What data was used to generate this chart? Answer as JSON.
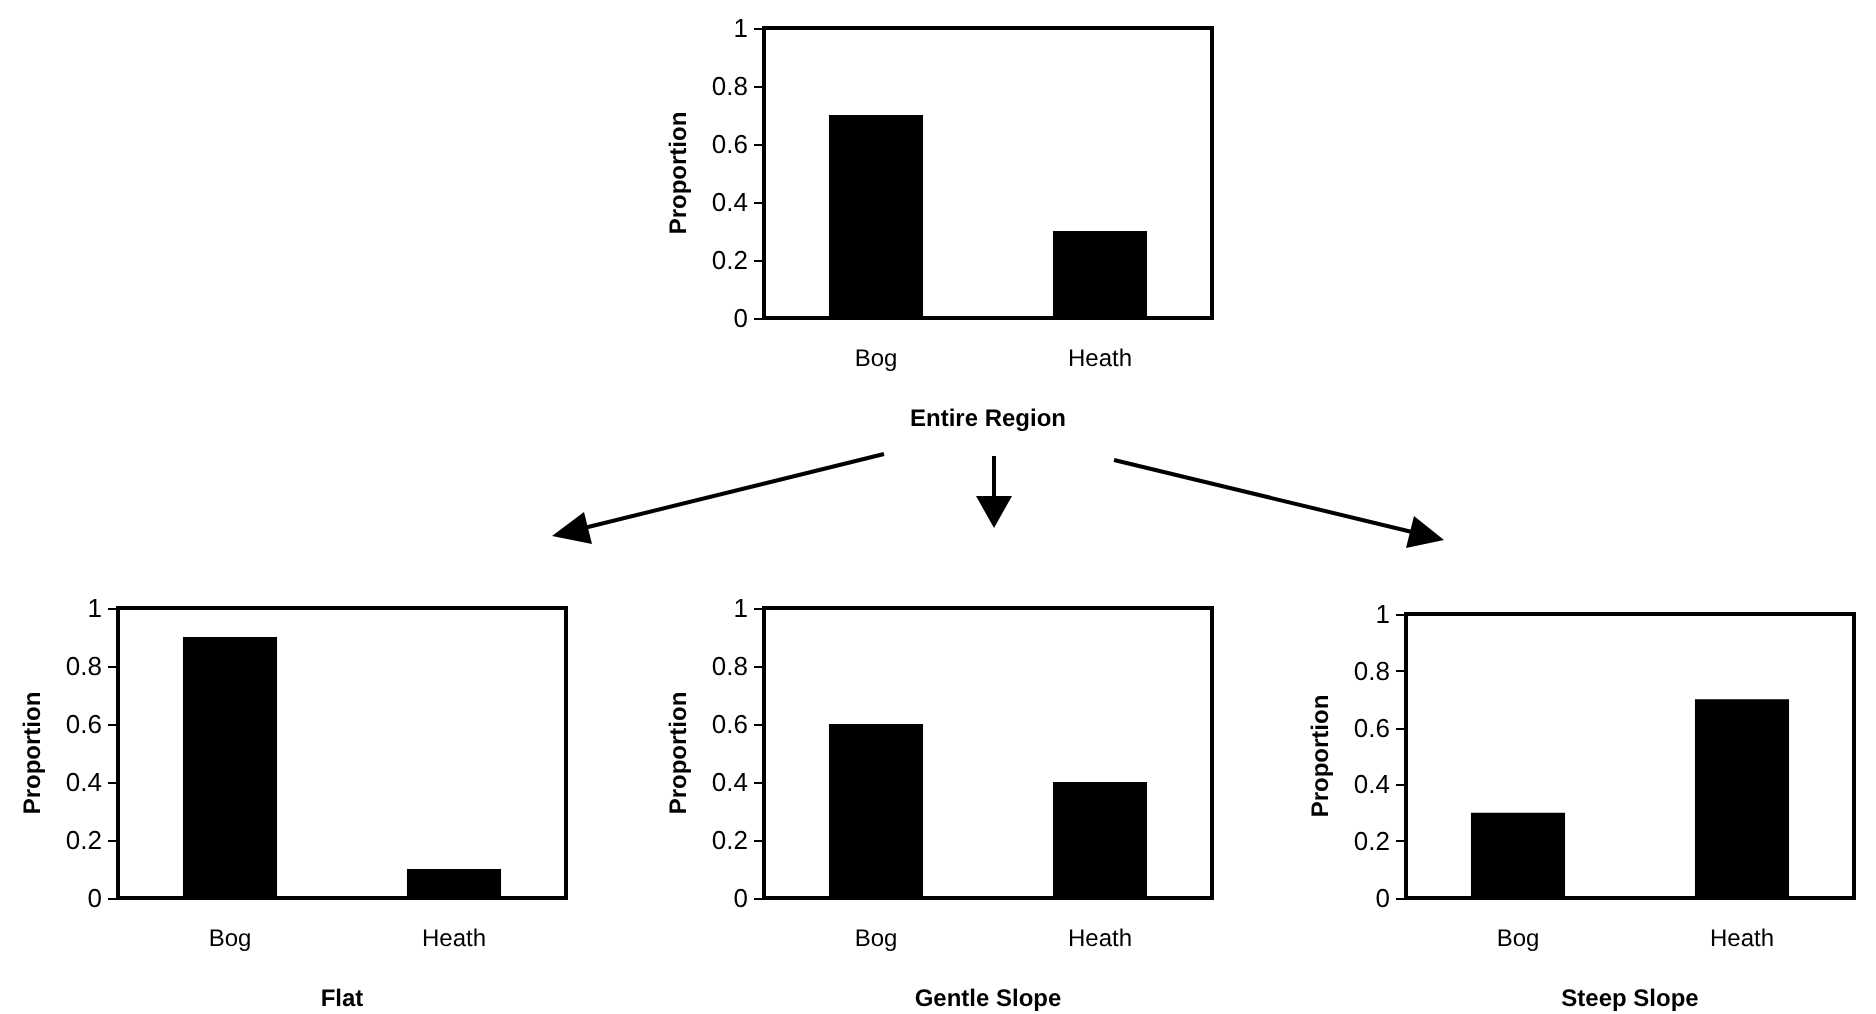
{
  "chart_data": [
    {
      "type": "bar",
      "xlabel": "Entire Region",
      "ylabel": "Proportion",
      "categories": [
        "Bog",
        "Heath"
      ],
      "values": [
        0.7,
        0.3
      ],
      "color": "#000000",
      "ylim": [
        0,
        1
      ],
      "yticks": [
        0,
        0.2,
        0.4,
        0.6,
        0.8,
        1
      ]
    },
    {
      "type": "bar",
      "xlabel": "Flat",
      "ylabel": "Proportion",
      "categories": [
        "Bog",
        "Heath"
      ],
      "values": [
        0.9,
        0.1
      ],
      "color": "#000000",
      "ylim": [
        0,
        1
      ],
      "yticks": [
        0,
        0.2,
        0.4,
        0.6,
        0.8,
        1
      ]
    },
    {
      "type": "bar",
      "xlabel": "Gentle Slope",
      "ylabel": "Proportion",
      "categories": [
        "Bog",
        "Heath"
      ],
      "values": [
        0.6,
        0.4
      ],
      "color": "#000000",
      "ylim": [
        0,
        1
      ],
      "yticks": [
        0,
        0.2,
        0.4,
        0.6,
        0.8,
        1
      ]
    },
    {
      "type": "bar",
      "xlabel": "Steep Slope",
      "ylabel": "Proportion",
      "categories": [
        "Bog",
        "Heath"
      ],
      "values": [
        0.3,
        0.7
      ],
      "color": "#000000",
      "ylim": [
        0,
        1
      ],
      "yticks": [
        0,
        0.2,
        0.4,
        0.6,
        0.8,
        1
      ]
    }
  ]
}
